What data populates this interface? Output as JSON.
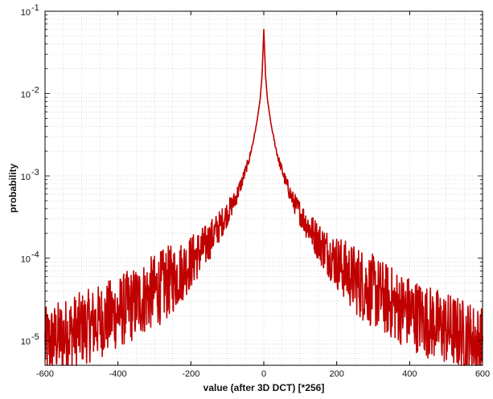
{
  "chart_data": {
    "type": "line",
    "title": "",
    "xlabel": "value (after 3D DCT) [*256]",
    "ylabel": "probability",
    "xlim": [
      -600,
      600
    ],
    "ylim": [
      5e-06,
      0.1
    ],
    "y_scale": "log",
    "grid": true,
    "x_ticks": [
      -600,
      -400,
      -200,
      0,
      200,
      400,
      600
    ],
    "x_tick_labels": [
      "-600",
      "-400",
      "-200",
      "0",
      "200",
      "400",
      "600"
    ],
    "y_ticks": [
      1e-05,
      0.0001,
      0.001,
      0.01,
      0.1
    ],
    "y_tick_labels": [
      {
        "base": "10",
        "exp": "-5"
      },
      {
        "base": "10",
        "exp": "-4"
      },
      {
        "base": "10",
        "exp": "-3"
      },
      {
        "base": "10",
        "exp": "-2"
      },
      {
        "base": "10",
        "exp": "-1"
      }
    ],
    "series": [
      {
        "color": "#c00000",
        "x": [
          -600,
          -560,
          -520,
          -480,
          -440,
          -400,
          -360,
          -320,
          -280,
          -240,
          -200,
          -160,
          -120,
          -80,
          -60,
          -40,
          -30,
          -20,
          -10,
          -5,
          0,
          5,
          10,
          20,
          30,
          40,
          60,
          80,
          120,
          160,
          200,
          240,
          280,
          320,
          360,
          400,
          440,
          480,
          520,
          560,
          600
        ],
        "y": [
          9e-06,
          1.1e-05,
          1.3e-05,
          1.5e-05,
          1.8e-05,
          2.2e-05,
          2.7e-05,
          3.5e-05,
          4.5e-05,
          6e-05,
          9e-05,
          0.00014,
          0.00025,
          0.0005,
          0.00085,
          0.0016,
          0.0025,
          0.0042,
          0.0085,
          0.016,
          0.06,
          0.016,
          0.0085,
          0.0042,
          0.0025,
          0.0016,
          0.00085,
          0.0005,
          0.00025,
          0.00014,
          9e-05,
          6e-05,
          4.5e-05,
          3.5e-05,
          2.7e-05,
          2.2e-05,
          1.8e-05,
          1.5e-05,
          1.3e-05,
          1.1e-05,
          9e-06
        ]
      }
    ]
  }
}
